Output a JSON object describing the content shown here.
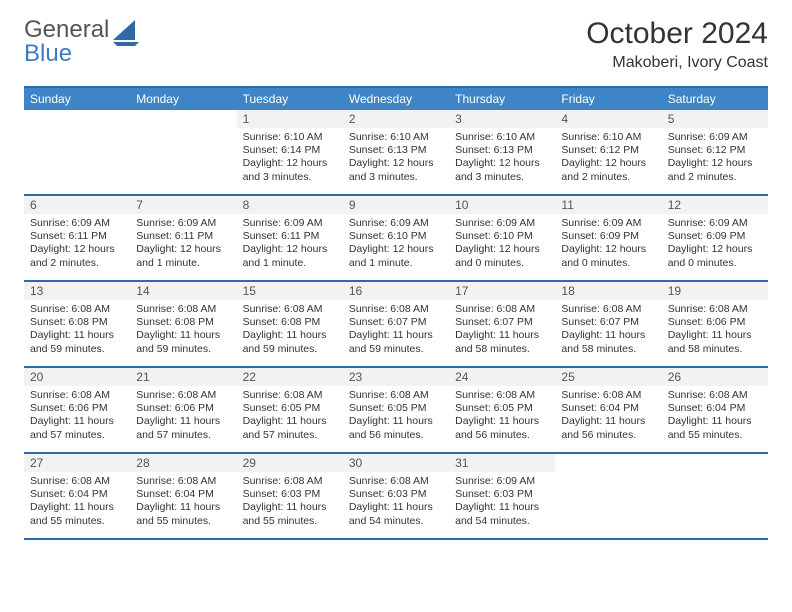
{
  "brand": {
    "line1": "General",
    "line2": "Blue"
  },
  "title": "October 2024",
  "location": "Makoberi, Ivory Coast",
  "colors": {
    "header_bg": "#3d85c6",
    "border": "#2f6aa8",
    "daynum_bg": "#f2f2f2",
    "logo_blue": "#3d7bbf"
  },
  "day_labels": [
    "Sunday",
    "Monday",
    "Tuesday",
    "Wednesday",
    "Thursday",
    "Friday",
    "Saturday"
  ],
  "weeks": [
    [
      {
        "n": "",
        "sr": "",
        "ss": "",
        "dl": "",
        "empty": true
      },
      {
        "n": "",
        "sr": "",
        "ss": "",
        "dl": "",
        "empty": true
      },
      {
        "n": "1",
        "sr": "6:10 AM",
        "ss": "6:14 PM",
        "dl": "12 hours and 3 minutes."
      },
      {
        "n": "2",
        "sr": "6:10 AM",
        "ss": "6:13 PM",
        "dl": "12 hours and 3 minutes."
      },
      {
        "n": "3",
        "sr": "6:10 AM",
        "ss": "6:13 PM",
        "dl": "12 hours and 3 minutes."
      },
      {
        "n": "4",
        "sr": "6:10 AM",
        "ss": "6:12 PM",
        "dl": "12 hours and 2 minutes."
      },
      {
        "n": "5",
        "sr": "6:09 AM",
        "ss": "6:12 PM",
        "dl": "12 hours and 2 minutes."
      }
    ],
    [
      {
        "n": "6",
        "sr": "6:09 AM",
        "ss": "6:11 PM",
        "dl": "12 hours and 2 minutes."
      },
      {
        "n": "7",
        "sr": "6:09 AM",
        "ss": "6:11 PM",
        "dl": "12 hours and 1 minute."
      },
      {
        "n": "8",
        "sr": "6:09 AM",
        "ss": "6:11 PM",
        "dl": "12 hours and 1 minute."
      },
      {
        "n": "9",
        "sr": "6:09 AM",
        "ss": "6:10 PM",
        "dl": "12 hours and 1 minute."
      },
      {
        "n": "10",
        "sr": "6:09 AM",
        "ss": "6:10 PM",
        "dl": "12 hours and 0 minutes."
      },
      {
        "n": "11",
        "sr": "6:09 AM",
        "ss": "6:09 PM",
        "dl": "12 hours and 0 minutes."
      },
      {
        "n": "12",
        "sr": "6:09 AM",
        "ss": "6:09 PM",
        "dl": "12 hours and 0 minutes."
      }
    ],
    [
      {
        "n": "13",
        "sr": "6:08 AM",
        "ss": "6:08 PM",
        "dl": "11 hours and 59 minutes."
      },
      {
        "n": "14",
        "sr": "6:08 AM",
        "ss": "6:08 PM",
        "dl": "11 hours and 59 minutes."
      },
      {
        "n": "15",
        "sr": "6:08 AM",
        "ss": "6:08 PM",
        "dl": "11 hours and 59 minutes."
      },
      {
        "n": "16",
        "sr": "6:08 AM",
        "ss": "6:07 PM",
        "dl": "11 hours and 59 minutes."
      },
      {
        "n": "17",
        "sr": "6:08 AM",
        "ss": "6:07 PM",
        "dl": "11 hours and 58 minutes."
      },
      {
        "n": "18",
        "sr": "6:08 AM",
        "ss": "6:07 PM",
        "dl": "11 hours and 58 minutes."
      },
      {
        "n": "19",
        "sr": "6:08 AM",
        "ss": "6:06 PM",
        "dl": "11 hours and 58 minutes."
      }
    ],
    [
      {
        "n": "20",
        "sr": "6:08 AM",
        "ss": "6:06 PM",
        "dl": "11 hours and 57 minutes."
      },
      {
        "n": "21",
        "sr": "6:08 AM",
        "ss": "6:06 PM",
        "dl": "11 hours and 57 minutes."
      },
      {
        "n": "22",
        "sr": "6:08 AM",
        "ss": "6:05 PM",
        "dl": "11 hours and 57 minutes."
      },
      {
        "n": "23",
        "sr": "6:08 AM",
        "ss": "6:05 PM",
        "dl": "11 hours and 56 minutes."
      },
      {
        "n": "24",
        "sr": "6:08 AM",
        "ss": "6:05 PM",
        "dl": "11 hours and 56 minutes."
      },
      {
        "n": "25",
        "sr": "6:08 AM",
        "ss": "6:04 PM",
        "dl": "11 hours and 56 minutes."
      },
      {
        "n": "26",
        "sr": "6:08 AM",
        "ss": "6:04 PM",
        "dl": "11 hours and 55 minutes."
      }
    ],
    [
      {
        "n": "27",
        "sr": "6:08 AM",
        "ss": "6:04 PM",
        "dl": "11 hours and 55 minutes."
      },
      {
        "n": "28",
        "sr": "6:08 AM",
        "ss": "6:04 PM",
        "dl": "11 hours and 55 minutes."
      },
      {
        "n": "29",
        "sr": "6:08 AM",
        "ss": "6:03 PM",
        "dl": "11 hours and 55 minutes."
      },
      {
        "n": "30",
        "sr": "6:08 AM",
        "ss": "6:03 PM",
        "dl": "11 hours and 54 minutes."
      },
      {
        "n": "31",
        "sr": "6:09 AM",
        "ss": "6:03 PM",
        "dl": "11 hours and 54 minutes."
      },
      {
        "n": "",
        "sr": "",
        "ss": "",
        "dl": "",
        "empty": true
      },
      {
        "n": "",
        "sr": "",
        "ss": "",
        "dl": "",
        "empty": true
      }
    ]
  ]
}
